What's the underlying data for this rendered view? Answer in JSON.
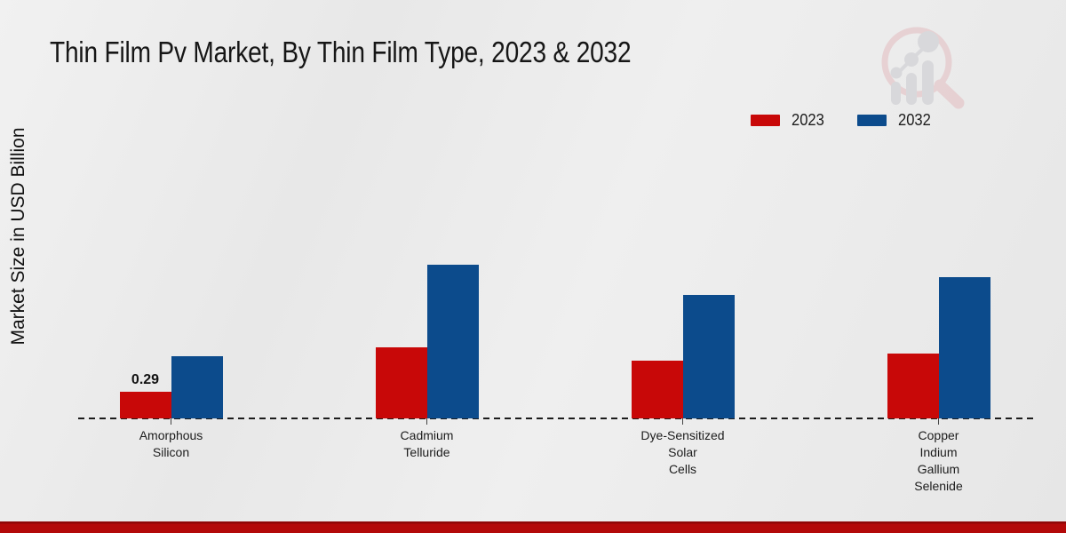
{
  "title": "Thin Film Pv Market, By Thin Film Type, 2023 & 2032",
  "ylabel": "Market Size in USD Billion",
  "legend": {
    "items": [
      {
        "label": "2023",
        "color": "#c80808"
      },
      {
        "label": "2032",
        "color": "#0c4b8c"
      }
    ]
  },
  "chart_data": {
    "type": "bar",
    "title": "Thin Film Pv Market, By Thin Film Type, 2023 & 2032",
    "xlabel": "",
    "ylabel": "Market Size in USD Billion",
    "categories": [
      "Amorphous Silicon",
      "Cadmium Telluride",
      "Dye-Sensitized Solar Cells",
      "Copper Indium Gallium Selenide"
    ],
    "categories_multiline": [
      [
        "Amorphous",
        "Silicon"
      ],
      [
        "Cadmium",
        "Telluride"
      ],
      [
        "Dye-Sensitized",
        "Solar",
        "Cells"
      ],
      [
        "Copper",
        "Indium",
        "Gallium",
        "Selenide"
      ]
    ],
    "series": [
      {
        "name": "2023",
        "color": "#c80808",
        "values": [
          0.29,
          0.77,
          0.63,
          0.71
        ]
      },
      {
        "name": "2032",
        "color": "#0c4b8c",
        "values": [
          0.68,
          1.67,
          1.34,
          1.54
        ]
      }
    ],
    "annotations": [
      {
        "series": "2023",
        "category": "Amorphous Silicon",
        "text": "0.29"
      }
    ],
    "ylim": [
      0,
      2.0
    ],
    "grid": false,
    "axis_style": "dashed-baseline-only",
    "legend_position": "top-right"
  },
  "footer": {
    "color": "#b30909"
  },
  "watermark": {
    "icon": "market-research-magnifier-chart-logo"
  }
}
